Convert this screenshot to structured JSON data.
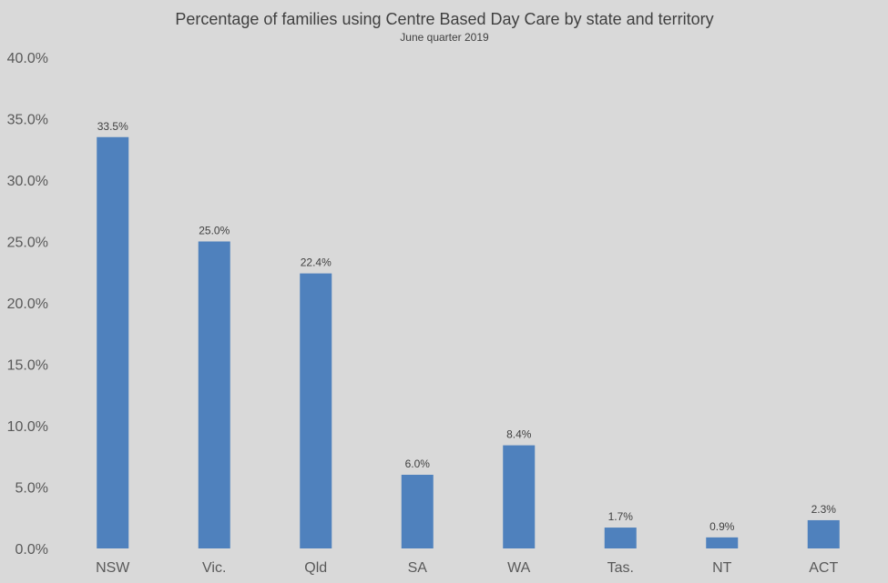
{
  "chart_data": {
    "type": "bar",
    "title": "Percentage of families using Centre Based Day Care by state and territory",
    "subtitle": "June  quarter  2019",
    "xlabel": "",
    "ylabel": "",
    "categories": [
      "NSW",
      "Vic.",
      "Qld",
      "SA",
      "WA",
      "Tas.",
      "NT",
      "ACT"
    ],
    "values": [
      33.5,
      25.0,
      22.4,
      6.0,
      8.4,
      1.7,
      0.9,
      2.3
    ],
    "data_labels": [
      "33.5%",
      "25.0%",
      "22.4%",
      "6.0%",
      "8.4%",
      "1.7%",
      "0.9%",
      "2.3%"
    ],
    "ylim": [
      0,
      40
    ],
    "yticks": [
      "0.0%",
      "5.0%",
      "10.0%",
      "15.0%",
      "20.0%",
      "25.0%",
      "30.0%",
      "35.0%",
      "40.0%"
    ],
    "ytick_values": [
      0,
      5,
      10,
      15,
      20,
      25,
      30,
      35,
      40
    ],
    "grid": false,
    "legend": "none",
    "colors": {
      "bar": "#4f81bd",
      "background": "#d9d9d9"
    }
  }
}
